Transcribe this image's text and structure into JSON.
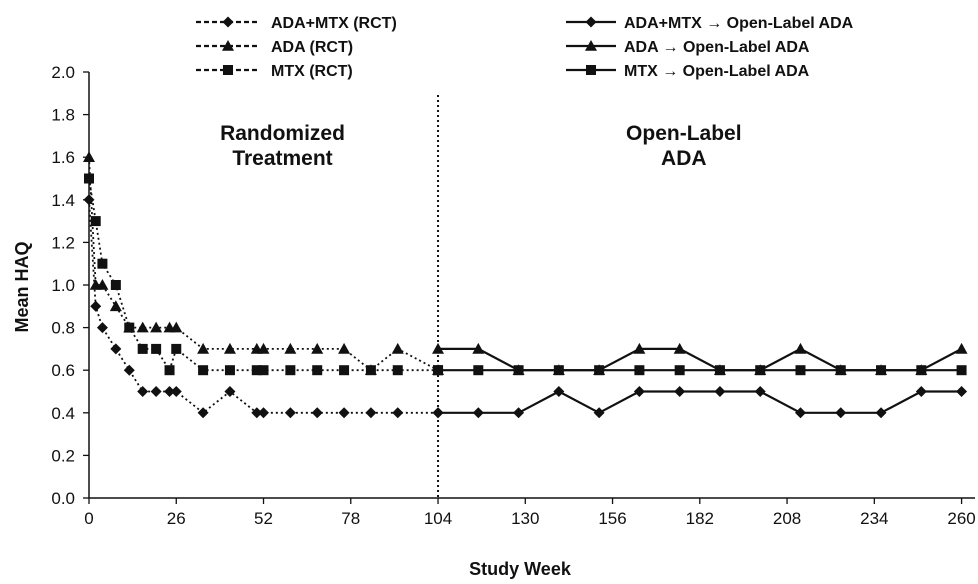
{
  "chart_data": {
    "type": "line",
    "title": "",
    "xlabel": "Study Week",
    "ylabel": "Mean HAQ",
    "xlim": [
      0,
      264
    ],
    "ylim": [
      0,
      2.0
    ],
    "x_ticks": [
      0,
      26,
      52,
      78,
      104,
      130,
      156,
      182,
      208,
      234,
      260
    ],
    "y_ticks": [
      "0.0",
      "0.2",
      "0.4",
      "0.6",
      "0.8",
      "1.0",
      "1.2",
      "1.4",
      "1.6",
      "1.8",
      "2.0"
    ],
    "grid": false,
    "divider_x": 104,
    "phase_labels": [
      {
        "lines": [
          "Randomized",
          "Treatment"
        ]
      },
      {
        "lines": [
          "Open-Label",
          "ADA"
        ]
      }
    ],
    "series": [
      {
        "name": "ADA+MTX (RCT)",
        "marker": "diamond",
        "line_style": "dotted",
        "x": [
          0,
          2,
          4,
          8,
          12,
          16,
          20,
          24,
          26,
          34,
          42,
          50,
          52,
          60,
          68,
          76,
          84,
          92,
          104
        ],
        "y": [
          1.4,
          0.9,
          0.8,
          0.7,
          0.6,
          0.5,
          0.5,
          0.5,
          0.5,
          0.4,
          0.5,
          0.4,
          0.4,
          0.4,
          0.4,
          0.4,
          0.4,
          0.4,
          0.4
        ]
      },
      {
        "name": "ADA (RCT)",
        "marker": "triangle",
        "line_style": "dotted",
        "x": [
          0,
          2,
          4,
          8,
          12,
          16,
          20,
          24,
          26,
          34,
          42,
          50,
          52,
          60,
          68,
          76,
          84,
          92,
          104
        ],
        "y": [
          1.6,
          1.0,
          1.0,
          0.9,
          0.8,
          0.8,
          0.8,
          0.8,
          0.8,
          0.7,
          0.7,
          0.7,
          0.7,
          0.7,
          0.7,
          0.7,
          0.6,
          0.7,
          0.6
        ]
      },
      {
        "name": "MTX (RCT)",
        "marker": "square",
        "line_style": "dotted",
        "x": [
          0,
          2,
          4,
          8,
          12,
          16,
          20,
          24,
          26,
          34,
          42,
          50,
          52,
          60,
          68,
          76,
          84,
          92,
          104
        ],
        "y": [
          1.5,
          1.3,
          1.1,
          1.0,
          0.8,
          0.7,
          0.7,
          0.6,
          0.7,
          0.6,
          0.6,
          0.6,
          0.6,
          0.6,
          0.6,
          0.6,
          0.6,
          0.6,
          0.6
        ]
      },
      {
        "name": "ADA+MTX → Open-Label ADA",
        "marker": "diamond",
        "line_style": "solid",
        "x": [
          104,
          116,
          128,
          140,
          152,
          164,
          176,
          188,
          200,
          212,
          224,
          236,
          248,
          260
        ],
        "y": [
          0.4,
          0.4,
          0.4,
          0.5,
          0.4,
          0.5,
          0.5,
          0.5,
          0.5,
          0.4,
          0.4,
          0.4,
          0.5,
          0.5
        ]
      },
      {
        "name": "ADA → Open-Label ADA",
        "marker": "triangle",
        "line_style": "solid",
        "x": [
          104,
          116,
          128,
          140,
          152,
          164,
          176,
          188,
          200,
          212,
          224,
          236,
          248,
          260
        ],
        "y": [
          0.7,
          0.7,
          0.6,
          0.6,
          0.6,
          0.7,
          0.7,
          0.6,
          0.6,
          0.7,
          0.6,
          0.6,
          0.6,
          0.7
        ]
      },
      {
        "name": "MTX → Open-Label ADA",
        "marker": "square",
        "line_style": "solid",
        "x": [
          104,
          116,
          128,
          140,
          152,
          164,
          176,
          188,
          200,
          212,
          224,
          236,
          248,
          260
        ],
        "y": [
          0.6,
          0.6,
          0.6,
          0.6,
          0.6,
          0.6,
          0.6,
          0.6,
          0.6,
          0.6,
          0.6,
          0.6,
          0.6,
          0.6
        ]
      }
    ],
    "legend_placement": "top"
  }
}
